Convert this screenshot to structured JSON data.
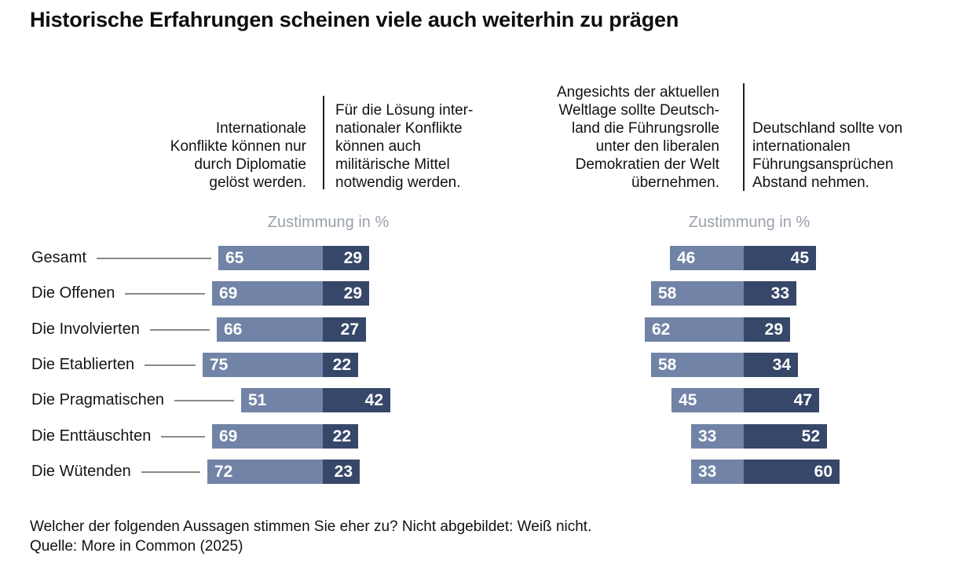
{
  "title": "Historische Erfahrungen scheinen viele auch weiterhin zu prägen",
  "header": {
    "statements": [
      {
        "id": "diplomacy",
        "text": "Internationale\nKonflikte können nur\ndurch Diplomatie\ngelöst werden.",
        "align": "right"
      },
      {
        "id": "military",
        "text": "Für die Lösung inter-\nnationaler Konflikte\nkönnen auch\nmilitärische Mittel\nnotwendig werden.",
        "align": "left"
      },
      {
        "id": "leadership",
        "text": "Angesichts der aktuellen\nWeltlage sollte Deutsch-\nland die Führungsrolle\nunter den liberalen\nDemokratien der Welt\nübernehmen.",
        "align": "right"
      },
      {
        "id": "restraint",
        "text": "Deutschland sollte von\ninternationalen\nFührungsansprüchen\nAbstand nehmen.",
        "align": "left"
      }
    ]
  },
  "chart_data": {
    "type": "bar",
    "subtype": "paired diverging stacked horizontal bars",
    "value_unit": "%",
    "categories": [
      "Gesamt",
      "Die Offenen",
      "Die Involvierten",
      "Die Etablierten",
      "Die Pragmatischen",
      "Die Enttäuschten",
      "Die Wütenden"
    ],
    "charts": [
      {
        "axis_caption": "Zustimmung in %",
        "series": [
          {
            "name": "Internationale Konflikte können nur durch Diplomatie gelöst werden.",
            "color_role": "light",
            "values": [
              65,
              69,
              66,
              75,
              51,
              69,
              72
            ]
          },
          {
            "name": "Für die Lösung internationaler Konflikte können auch militärische Mittel notwendig werden.",
            "color_role": "dark",
            "values": [
              29,
              29,
              27,
              22,
              42,
              22,
              23
            ]
          }
        ]
      },
      {
        "axis_caption": "Zustimmung in %",
        "series": [
          {
            "name": "Angesichts der aktuellen Weltlage sollte Deutschland die Führungsrolle unter den liberalen Demokratien der Welt übernehmen.",
            "color_role": "light",
            "values": [
              46,
              58,
              62,
              58,
              45,
              33,
              33
            ]
          },
          {
            "name": "Deutschland sollte von internationalen Führungsansprüchen Abstand nehmen.",
            "color_role": "dark",
            "values": [
              45,
              33,
              29,
              34,
              47,
              52,
              60
            ]
          }
        ]
      }
    ],
    "colors": {
      "light_bar": "#7183A6",
      "dark_bar": "#364769",
      "connector": "#8a8a8a",
      "caption_gray": "#9aa1ab",
      "value_text": "#ffffff"
    },
    "legend_position": "none",
    "grid": false
  },
  "footer": {
    "question": "Welcher der folgenden Aussagen stimmen Sie eher zu? Nicht abgebildet: Weiß nicht.",
    "source": "Quelle: More in Common (2025)"
  }
}
